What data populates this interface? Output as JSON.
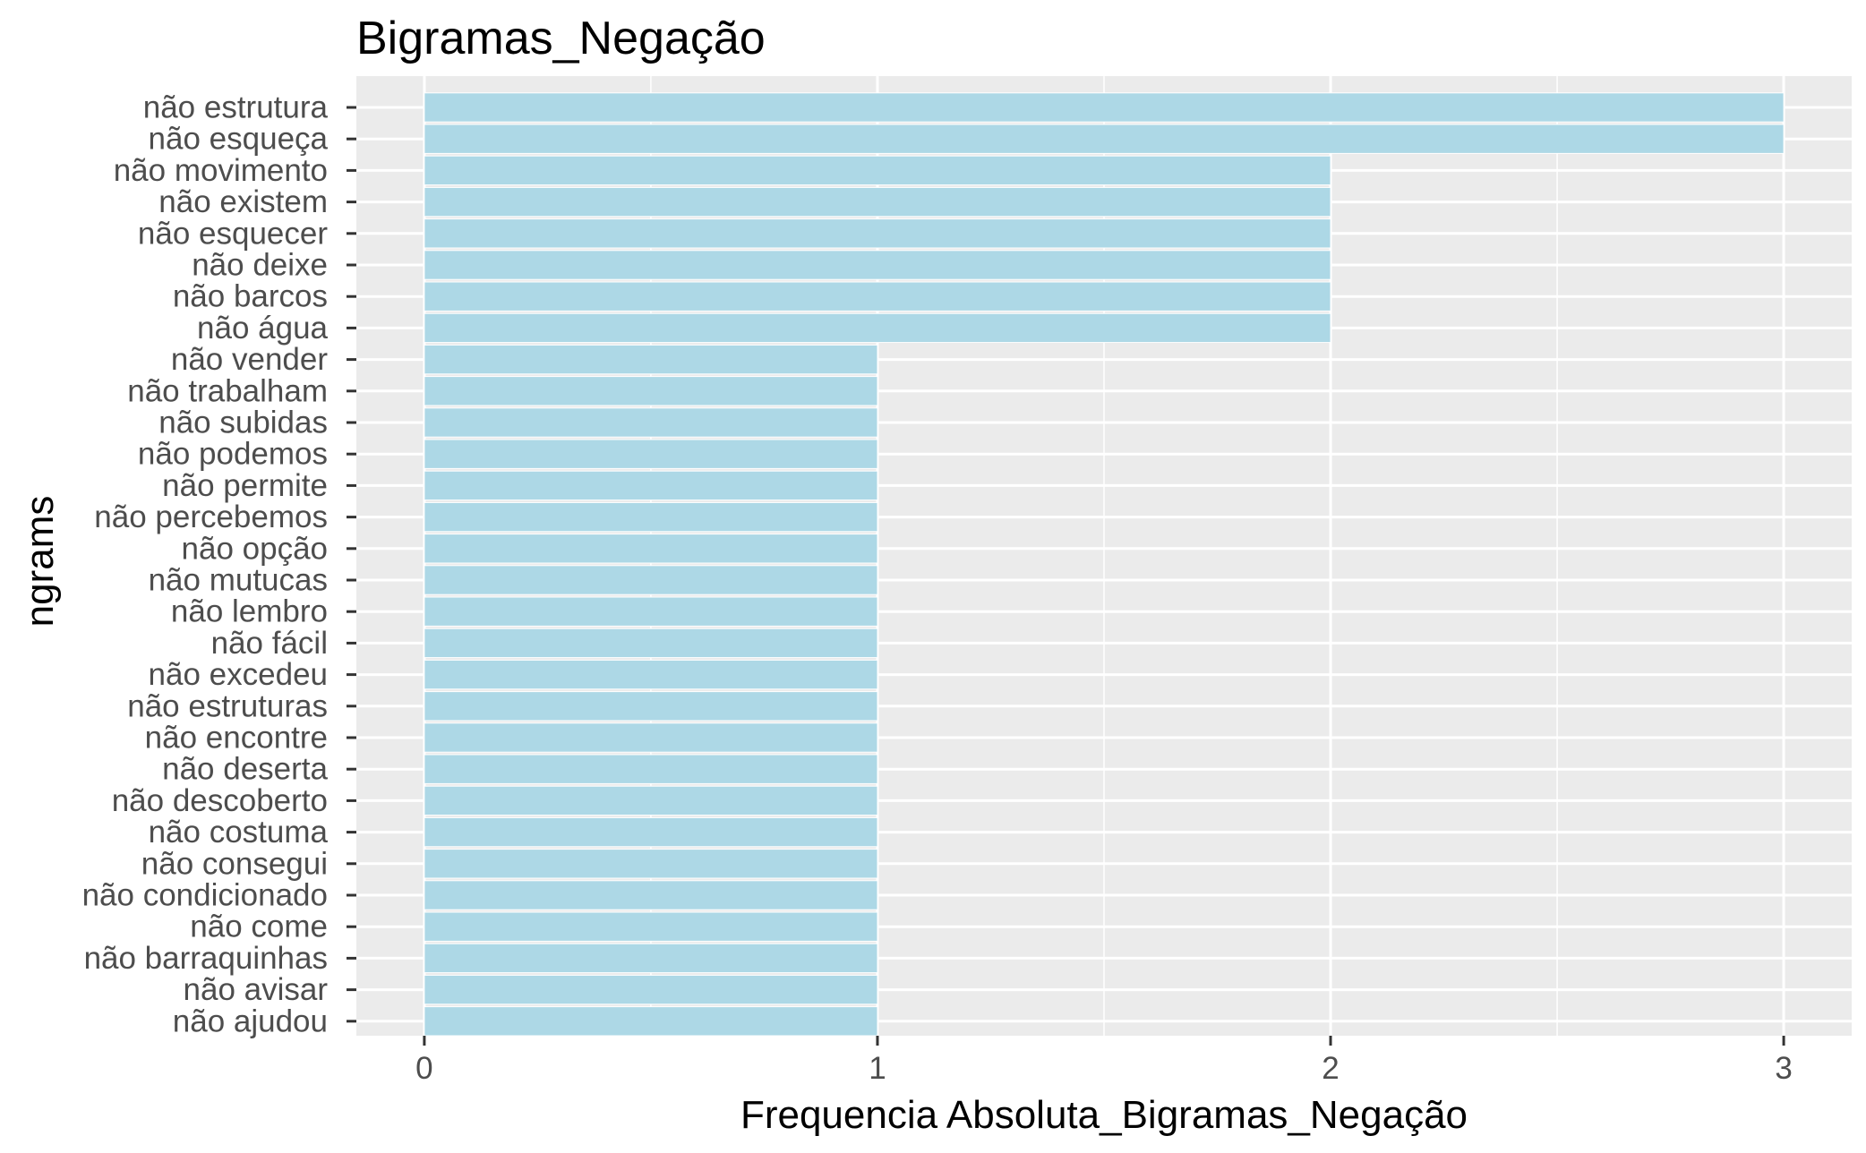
{
  "chart_data": {
    "type": "bar",
    "orientation": "horizontal",
    "title": "Bigramas_Negação",
    "xlabel": "Frequencia Absoluta_Bigramas_Negação",
    "ylabel": "ngrams",
    "xlim": [
      -0.15,
      3.15
    ],
    "xticks": [
      0,
      1,
      2,
      3
    ],
    "grid": true,
    "colors": {
      "bar": "#ADD8E6",
      "panel": "#EBEBEB",
      "grid": "#FFFFFF",
      "tick_text": "#4D4D4D",
      "tick_mark": "#333333"
    },
    "categories": [
      "não estrutura",
      "não esqueça",
      "não movimento",
      "não existem",
      "não esquecer",
      "não deixe",
      "não barcos",
      "não água",
      "não vender",
      "não trabalham",
      "não subidas",
      "não podemos",
      "não permite",
      "não percebemos",
      "não opção",
      "não mutucas",
      "não lembro",
      "não fácil",
      "não excedeu",
      "não estruturas",
      "não encontre",
      "não deserta",
      "não descoberto",
      "não costuma",
      "não consegui",
      "não condicionado",
      "não come",
      "não barraquinhas",
      "não avisar",
      "não ajudou"
    ],
    "values": [
      3,
      3,
      2,
      2,
      2,
      2,
      2,
      2,
      1,
      1,
      1,
      1,
      1,
      1,
      1,
      1,
      1,
      1,
      1,
      1,
      1,
      1,
      1,
      1,
      1,
      1,
      1,
      1,
      1,
      1
    ]
  }
}
